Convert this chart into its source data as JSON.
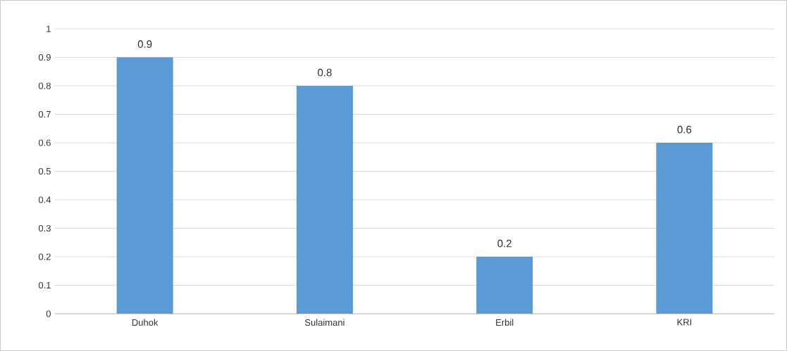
{
  "chart_data": {
    "type": "bar",
    "categories": [
      "Duhok",
      "Sulaimani",
      "Erbil",
      "KRI"
    ],
    "values": [
      0.9,
      0.8,
      0.2,
      0.6
    ],
    "color": "#5b9bd5",
    "ylim": [
      0,
      1
    ],
    "yticks": [
      0,
      0.1,
      0.2,
      0.3,
      0.4,
      0.5,
      0.6,
      0.7,
      0.8,
      0.9,
      1
    ],
    "grid": "y",
    "data_labels": true
  }
}
